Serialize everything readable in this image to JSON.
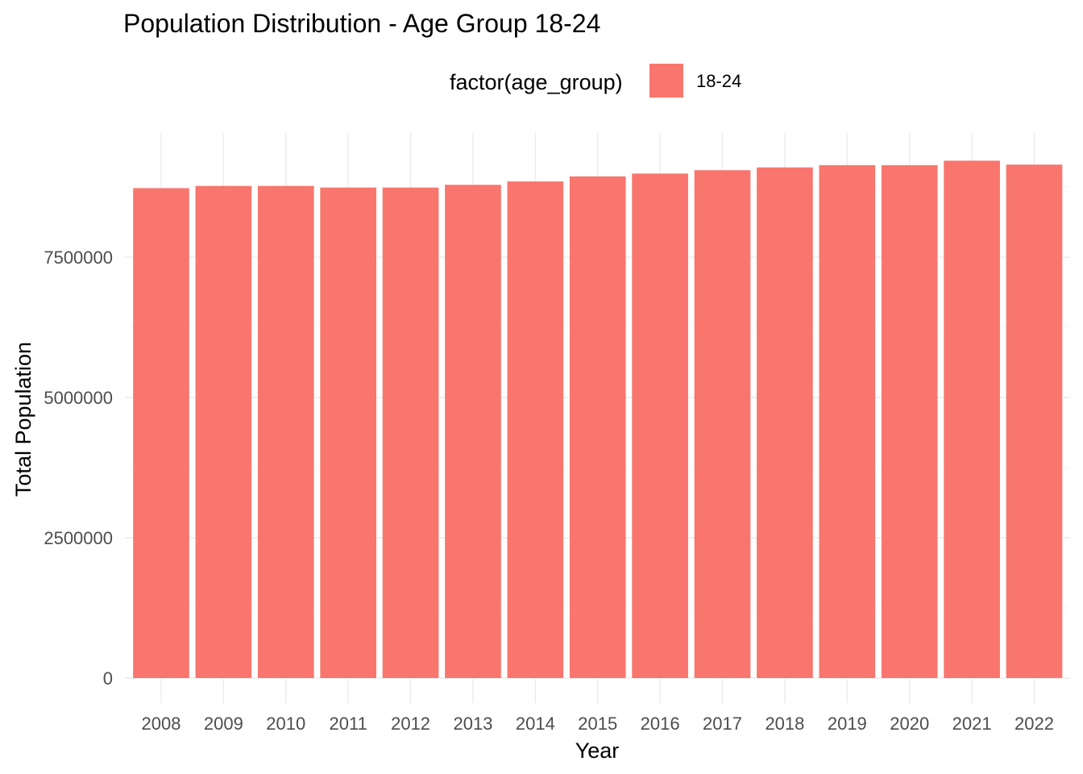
{
  "chart_data": {
    "type": "bar",
    "title": "Population Distribution - Age Group 18-24",
    "xlabel": "Year",
    "ylabel": "Total Population",
    "legend": {
      "title": "factor(age_group)",
      "placement": "top",
      "entries": [
        {
          "label": "18-24",
          "color": "#F8766D"
        }
      ]
    },
    "categories": [
      "2008",
      "2009",
      "2010",
      "2011",
      "2012",
      "2013",
      "2014",
      "2015",
      "2016",
      "2017",
      "2018",
      "2019",
      "2020",
      "2021",
      "2022"
    ],
    "series": [
      {
        "name": "18-24",
        "color": "#F8766D",
        "values": [
          8730000,
          8770000,
          8770000,
          8740000,
          8740000,
          8790000,
          8850000,
          8940000,
          8990000,
          9050000,
          9100000,
          9140000,
          9140000,
          9220000,
          9150000
        ]
      }
    ],
    "y_ticks": [
      0,
      2500000,
      5000000,
      7500000
    ],
    "y_tick_labels": [
      "0",
      "2500000",
      "5000000",
      "7500000"
    ],
    "ylim": [
      0,
      9700000
    ],
    "grid": true
  }
}
